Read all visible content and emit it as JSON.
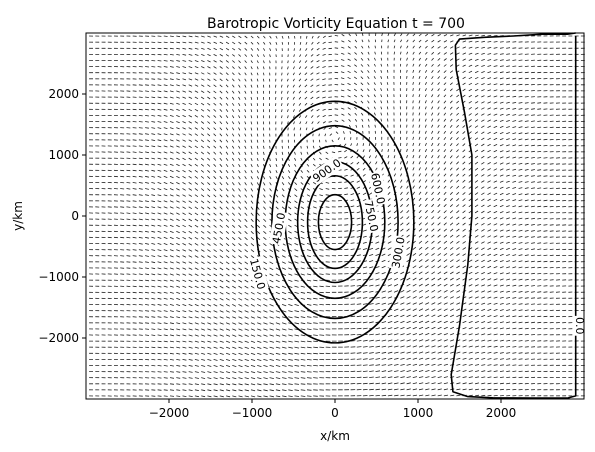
{
  "chart_data": {
    "type": "contour",
    "title": "Barotropic Vorticity Equation t = 700",
    "xlabel": "x/km",
    "ylabel": "y/km",
    "xlim": [
      -3000,
      3000
    ],
    "ylim": [
      -3000,
      3000
    ],
    "xticks": [
      {
        "value": -2000,
        "label": "−2000"
      },
      {
        "value": -1000,
        "label": "−1000"
      },
      {
        "value": 0,
        "label": "0"
      },
      {
        "value": 1000,
        "label": "1000"
      },
      {
        "value": 2000,
        "label": "2000"
      }
    ],
    "yticks": [
      {
        "value": 2000,
        "label": "2000"
      },
      {
        "value": 1000,
        "label": "1000"
      },
      {
        "value": 0,
        "label": "0"
      },
      {
        "value": -1000,
        "label": "−1000"
      },
      {
        "value": -2000,
        "label": "−2000"
      }
    ],
    "vortex_center": [
      0,
      -100
    ],
    "contour_rings": [
      {
        "level": 150.0,
        "rx": 950,
        "ry": 1980
      },
      {
        "level": 300.0,
        "rx": 760,
        "ry": 1580
      },
      {
        "level": 450.0,
        "rx": 600,
        "ry": 1250
      },
      {
        "level": 600.0,
        "rx": 450,
        "ry": 990
      },
      {
        "level": 750.0,
        "rx": 330,
        "ry": 760
      },
      {
        "level": 900.0,
        "rx": 200,
        "ry": 450
      }
    ],
    "contour_labels": [
      {
        "text": "900.0",
        "x": -100,
        "y": 750,
        "angle": -35
      },
      {
        "text": "600.0",
        "x": 520,
        "y": 450,
        "angle": 78
      },
      {
        "text": "750.0",
        "x": 440,
        "y": 0,
        "angle": 78
      },
      {
        "text": "450.0",
        "x": -680,
        "y": -200,
        "angle": -80
      },
      {
        "text": "300.0",
        "x": 760,
        "y": -600,
        "angle": -80
      },
      {
        "text": "150.0",
        "x": -930,
        "y": -950,
        "angle": 75
      }
    ],
    "zero_contour": {
      "level": 0.0,
      "points": [
        [
          2900,
          3000
        ],
        [
          2800,
          2980
        ],
        [
          2500,
          2980
        ],
        [
          2150,
          2950
        ],
        [
          1800,
          2930
        ],
        [
          1500,
          2900
        ],
        [
          1450,
          2800
        ],
        [
          1460,
          2400
        ],
        [
          1560,
          1700
        ],
        [
          1650,
          1000
        ],
        [
          1650,
          0
        ],
        [
          1600,
          -800
        ],
        [
          1500,
          -1800
        ],
        [
          1400,
          -2600
        ],
        [
          1420,
          -2880
        ],
        [
          1600,
          -2960
        ],
        [
          1900,
          -2980
        ],
        [
          2400,
          -2985
        ],
        [
          2800,
          -2985
        ],
        [
          2900,
          -2950
        ],
        [
          2900,
          2950
        ]
      ]
    },
    "zero_label": {
      "text": "0.0",
      "x": 2950,
      "y": -1800,
      "angle": 90
    },
    "vector_field": {
      "x_step": 75,
      "y_step": 100,
      "max_vector_km": 60
    },
    "grid": false
  }
}
